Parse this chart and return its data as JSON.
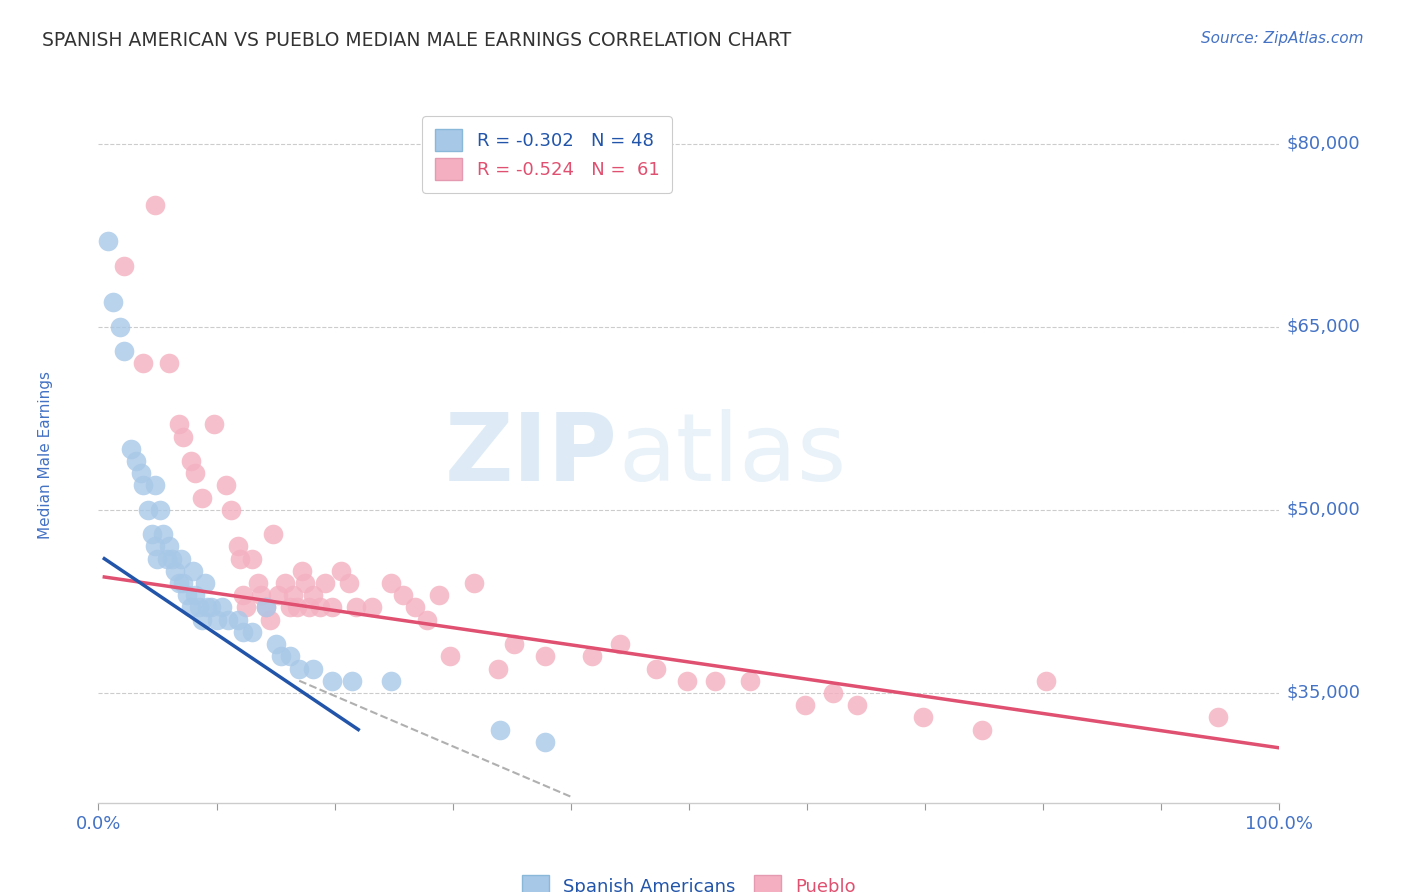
{
  "title": "SPANISH AMERICAN VS PUEBLO MEDIAN MALE EARNINGS CORRELATION CHART",
  "source_text": "Source: ZipAtlas.com",
  "ylabel": "Median Male Earnings",
  "x_min": 0.0,
  "x_max": 1.0,
  "y_min": 26000,
  "y_max": 83000,
  "y_ticks": [
    35000,
    50000,
    65000,
    80000
  ],
  "y_tick_labels": [
    "$35,000",
    "$50,000",
    "$65,000",
    "$80,000"
  ],
  "x_ticks": [
    0.0,
    0.1,
    0.2,
    0.3,
    0.4,
    0.5,
    0.6,
    0.7,
    0.8,
    0.9,
    1.0
  ],
  "x_tick_labels_show": [
    "0.0%",
    "",
    "",
    "",
    "",
    "",
    "",
    "",
    "",
    "",
    "100.0%"
  ],
  "background_color": "#ffffff",
  "grid_color": "#cccccc",
  "axis_color": "#4472c4",
  "series1_color": "#a8c8e8",
  "series2_color": "#f4b0c0",
  "trendline1_color": "#2255aa",
  "trendline2_color": "#e05070",
  "dashed_line_color": "#b0b0b0",
  "legend_line1": "R = -0.302   N = 48",
  "legend_line2": "R = -0.524   N =  61",
  "spanish_americans": {
    "x": [
      0.008,
      0.012,
      0.018,
      0.022,
      0.028,
      0.032,
      0.036,
      0.038,
      0.042,
      0.045,
      0.048,
      0.05,
      0.048,
      0.052,
      0.055,
      0.058,
      0.06,
      0.062,
      0.065,
      0.068,
      0.07,
      0.072,
      0.075,
      0.078,
      0.08,
      0.082,
      0.085,
      0.088,
      0.09,
      0.092,
      0.095,
      0.1,
      0.105,
      0.11,
      0.118,
      0.122,
      0.13,
      0.142,
      0.15,
      0.155,
      0.162,
      0.17,
      0.182,
      0.198,
      0.215,
      0.248,
      0.34,
      0.378
    ],
    "y": [
      72000,
      67000,
      65000,
      63000,
      55000,
      54000,
      53000,
      52000,
      50000,
      48000,
      47000,
      46000,
      52000,
      50000,
      48000,
      46000,
      47000,
      46000,
      45000,
      44000,
      46000,
      44000,
      43000,
      42000,
      45000,
      43000,
      42000,
      41000,
      44000,
      42000,
      42000,
      41000,
      42000,
      41000,
      41000,
      40000,
      40000,
      42000,
      39000,
      38000,
      38000,
      37000,
      37000,
      36000,
      36000,
      36000,
      32000,
      31000
    ]
  },
  "pueblo": {
    "x": [
      0.022,
      0.038,
      0.048,
      0.06,
      0.068,
      0.072,
      0.078,
      0.082,
      0.088,
      0.098,
      0.108,
      0.112,
      0.118,
      0.12,
      0.122,
      0.125,
      0.13,
      0.135,
      0.138,
      0.142,
      0.145,
      0.148,
      0.152,
      0.158,
      0.162,
      0.165,
      0.168,
      0.172,
      0.175,
      0.178,
      0.182,
      0.188,
      0.192,
      0.198,
      0.205,
      0.212,
      0.218,
      0.232,
      0.248,
      0.258,
      0.268,
      0.278,
      0.288,
      0.298,
      0.318,
      0.338,
      0.352,
      0.378,
      0.418,
      0.442,
      0.472,
      0.498,
      0.522,
      0.552,
      0.598,
      0.622,
      0.642,
      0.698,
      0.748,
      0.802,
      0.948
    ],
    "y": [
      70000,
      62000,
      75000,
      62000,
      57000,
      56000,
      54000,
      53000,
      51000,
      57000,
      52000,
      50000,
      47000,
      46000,
      43000,
      42000,
      46000,
      44000,
      43000,
      42000,
      41000,
      48000,
      43000,
      44000,
      42000,
      43000,
      42000,
      45000,
      44000,
      42000,
      43000,
      42000,
      44000,
      42000,
      45000,
      44000,
      42000,
      42000,
      44000,
      43000,
      42000,
      41000,
      43000,
      38000,
      44000,
      37000,
      39000,
      38000,
      38000,
      39000,
      37000,
      36000,
      36000,
      36000,
      34000,
      35000,
      34000,
      33000,
      32000,
      36000,
      33000
    ]
  },
  "trendline1_x": [
    0.005,
    0.22
  ],
  "trendline1_y": [
    46000,
    32000
  ],
  "trendline2_x": [
    0.005,
    1.0
  ],
  "trendline2_y": [
    44500,
    30500
  ],
  "dashed_line_x": [
    0.17,
    0.4
  ],
  "dashed_line_y": [
    36000,
    26500
  ]
}
